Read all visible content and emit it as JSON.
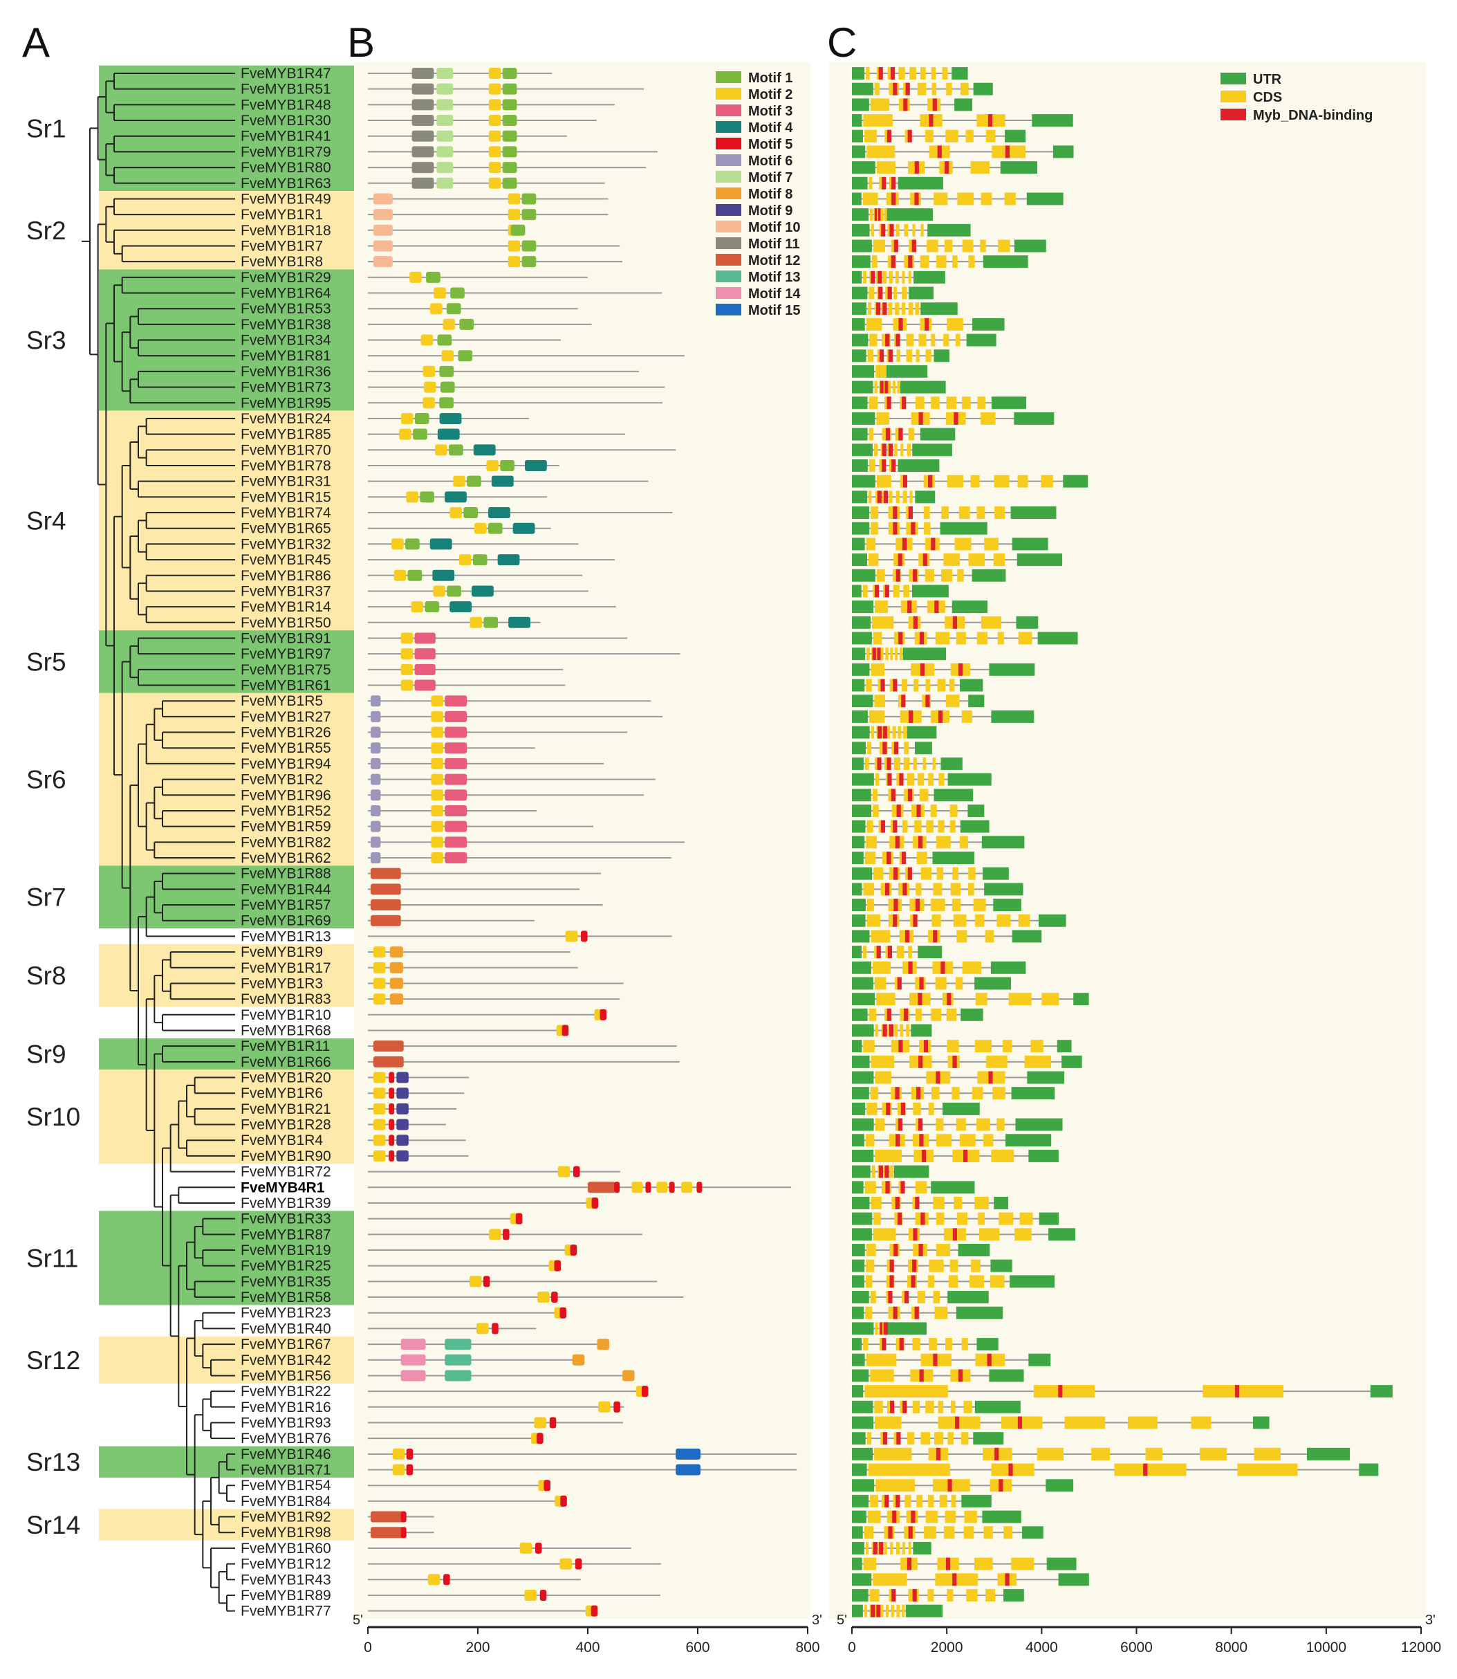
{
  "panels": {
    "a": "A",
    "b": "B",
    "c": "C"
  },
  "colors": {
    "green_band": "#7dc773",
    "yellow_band": "#fde9a9",
    "panel_bg": "#fbf8ec",
    "line": "#999999",
    "tree": "#222222",
    "utr": "#3ea642",
    "cds": "#f7cc1d",
    "myb": "#e0202a"
  },
  "subfamilies": [
    {
      "name": "Sr1",
      "first": 0,
      "last": 7,
      "color": "green"
    },
    {
      "name": "Sr2",
      "first": 8,
      "last": 12,
      "color": "yellow"
    },
    {
      "name": "Sr3",
      "first": 13,
      "last": 21,
      "color": "green"
    },
    {
      "name": "Sr4",
      "first": 22,
      "last": 35,
      "color": "yellow"
    },
    {
      "name": "Sr5",
      "first": 36,
      "last": 39,
      "color": "green"
    },
    {
      "name": "Sr6",
      "first": 40,
      "last": 50,
      "color": "yellow"
    },
    {
      "name": "Sr7",
      "first": 51,
      "last": 54,
      "color": "green"
    },
    {
      "name": "Sr8",
      "first": 56,
      "last": 59,
      "color": "yellow"
    },
    {
      "name": "Sr9",
      "first": 62,
      "last": 63,
      "color": "green"
    },
    {
      "name": "Sr10",
      "first": 64,
      "last": 69,
      "color": "yellow"
    },
    {
      "name": "Sr11",
      "first": 73,
      "last": 78,
      "color": "green"
    },
    {
      "name": "Sr12",
      "first": 81,
      "last": 83,
      "color": "yellow"
    },
    {
      "name": "Sr13",
      "first": 88,
      "last": 89,
      "color": "green"
    },
    {
      "name": "Sr14",
      "first": 92,
      "last": 93,
      "color": "yellow"
    }
  ],
  "genes": [
    "FveMYB1R47",
    "FveMYB1R51",
    "FveMYB1R48",
    "FveMYB1R30",
    "FveMYB1R41",
    "FveMYB1R79",
    "FveMYB1R80",
    "FveMYB1R63",
    "FveMYB1R49",
    "FveMYB1R1",
    "FveMYB1R18",
    "FveMYB1R7",
    "FveMYB1R8",
    "FveMYB1R29",
    "FveMYB1R64",
    "FveMYB1R53",
    "FveMYB1R38",
    "FveMYB1R34",
    "FveMYB1R81",
    "FveMYB1R36",
    "FveMYB1R73",
    "FveMYB1R95",
    "FveMYB1R24",
    "FveMYB1R85",
    "FveMYB1R70",
    "FveMYB1R78",
    "FveMYB1R31",
    "FveMYB1R15",
    "FveMYB1R74",
    "FveMYB1R65",
    "FveMYB1R32",
    "FveMYB1R45",
    "FveMYB1R86",
    "FveMYB1R37",
    "FveMYB1R14",
    "FveMYB1R50",
    "FveMYB1R91",
    "FveMYB1R97",
    "FveMYB1R75",
    "FveMYB1R61",
    "FveMYB1R5",
    "FveMYB1R27",
    "FveMYB1R26",
    "FveMYB1R55",
    "FveMYB1R94",
    "FveMYB1R2",
    "FveMYB1R96",
    "FveMYB1R52",
    "FveMYB1R59",
    "FveMYB1R82",
    "FveMYB1R62",
    "FveMYB1R88",
    "FveMYB1R44",
    "FveMYB1R57",
    "FveMYB1R69",
    "FveMYB1R13",
    "FveMYB1R9",
    "FveMYB1R17",
    "FveMYB1R3",
    "FveMYB1R83",
    "FveMYB1R10",
    "FveMYB1R68",
    "FveMYB1R11",
    "FveMYB1R66",
    "FveMYB1R20",
    "FveMYB1R6",
    "FveMYB1R21",
    "FveMYB1R28",
    "FveMYB1R4",
    "FveMYB1R90",
    "FveMYB1R72",
    "FveMYB4R1",
    "FveMYB1R39",
    "FveMYB1R33",
    "FveMYB1R87",
    "FveMYB1R19",
    "FveMYB1R25",
    "FveMYB1R35",
    "FveMYB1R58",
    "FveMYB1R23",
    "FveMYB1R40",
    "FveMYB1R67",
    "FveMYB1R42",
    "FveMYB1R56",
    "FveMYB1R22",
    "FveMYB1R16",
    "FveMYB1R93",
    "FveMYB1R76",
    "FveMYB1R46",
    "FveMYB1R71",
    "FveMYB1R54",
    "FveMYB1R84",
    "FveMYB1R92",
    "FveMYB1R98",
    "FveMYB1R60",
    "FveMYB1R12",
    "FveMYB1R43",
    "FveMYB1R89",
    "FveMYB1R77"
  ],
  "bold_gene": "FveMYB4R1",
  "motif_legend": [
    {
      "label": "Motif 1",
      "color": "#7ab93d"
    },
    {
      "label": "Motif 2",
      "color": "#f7cc1d"
    },
    {
      "label": "Motif 3",
      "color": "#e85c7d"
    },
    {
      "label": "Motif 4",
      "color": "#17827a"
    },
    {
      "label": "Motif 5",
      "color": "#e3101e"
    },
    {
      "label": "Motif 6",
      "color": "#9b96ba"
    },
    {
      "label": "Motif 7",
      "color": "#b5df8e"
    },
    {
      "label": "Motif 8",
      "color": "#f0a02c"
    },
    {
      "label": "Motif 9",
      "color": "#4b4394"
    },
    {
      "label": "Motif 10",
      "color": "#f7b894"
    },
    {
      "label": "Motif 11",
      "color": "#8a8a7c"
    },
    {
      "label": "Motif 12",
      "color": "#d45a3a"
    },
    {
      "label": "Motif 13",
      "color": "#56bb93"
    },
    {
      "label": "Motif 14",
      "color": "#ef8fb0"
    },
    {
      "label": "Motif 15",
      "color": "#1f6bc4"
    }
  ],
  "structure_legend": [
    {
      "label": "UTR",
      "color": "#3ea642"
    },
    {
      "label": "CDS",
      "color": "#f7cc1d"
    },
    {
      "label": "Myb_DNA-binding",
      "color": "#e0202a"
    }
  ],
  "protein_axis": {
    "ticks": [
      "0",
      "200",
      "400",
      "600",
      "800"
    ],
    "values": [
      0,
      200,
      400,
      600,
      800
    ],
    "max": 800,
    "start_label": "5'",
    "end_label": "3'"
  },
  "gene_axis": {
    "ticks": [
      "0",
      "2000",
      "4000",
      "6000",
      "8000",
      "10000",
      "12000"
    ],
    "values": [
      0,
      2000,
      4000,
      6000,
      8000,
      10000,
      12000
    ],
    "max": 12000,
    "start_label": "5'",
    "end_label": "3'"
  }
}
